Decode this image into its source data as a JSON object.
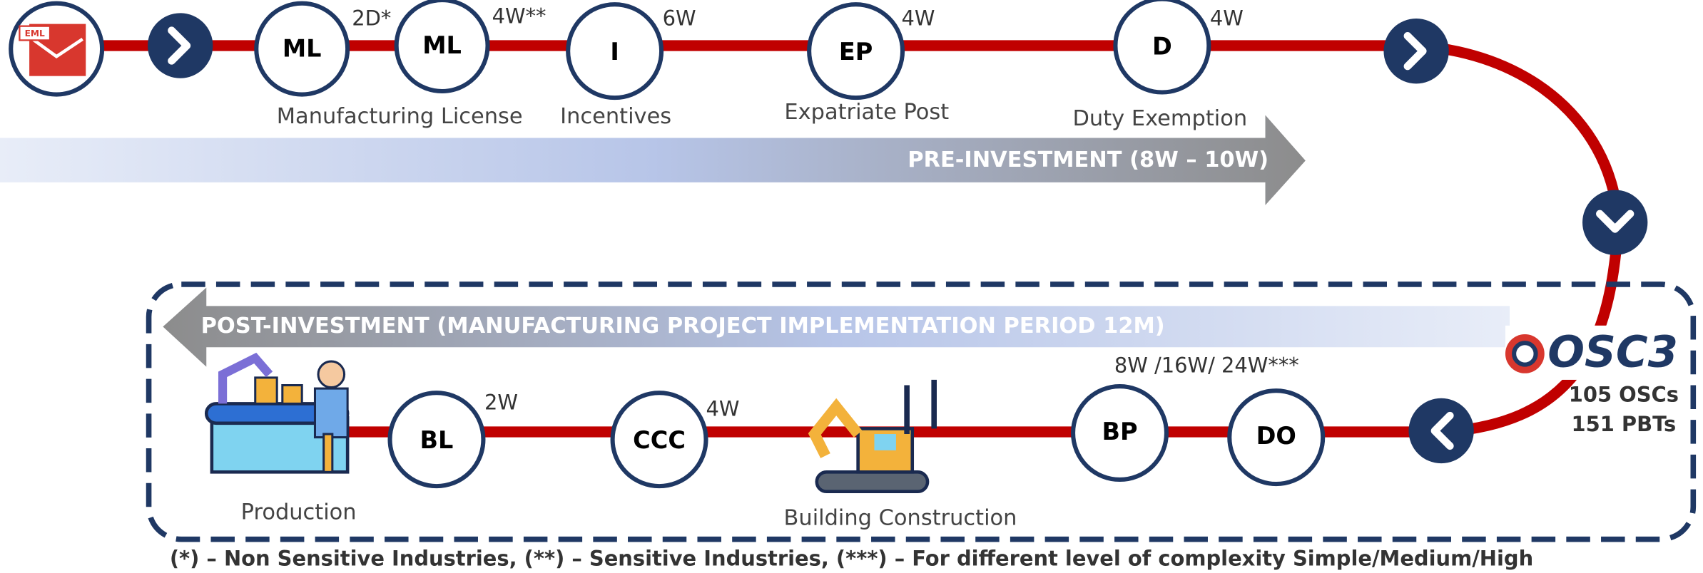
{
  "icon_label": "EML",
  "pre_investment": {
    "title": "PRE-INVESTMENT (8W – 10W)",
    "steps": [
      {
        "code": "ML",
        "duration": "2D*"
      },
      {
        "code": "ML",
        "duration": "4W**"
      },
      {
        "code": "I",
        "duration": "6W"
      },
      {
        "code": "EP",
        "duration": "4W"
      },
      {
        "code": "D",
        "duration": "4W"
      }
    ],
    "labels": [
      "Manufacturing License",
      "Incentives",
      "Expatriate Post",
      "Duty Exemption"
    ]
  },
  "post_investment": {
    "title": "POST-INVESTMENT (MANUFACTURING PROJECT IMPLEMENTATION PERIOD 12M)",
    "steps": [
      {
        "code": "BL",
        "duration": "2W"
      },
      {
        "code": "CCC",
        "duration": "4W"
      },
      {
        "code": "BP",
        "duration": "8W /16W/ 24W***"
      },
      {
        "code": "DO"
      }
    ],
    "labels": [
      "Production",
      "Building Construction"
    ]
  },
  "logo": {
    "name": "OSC3",
    "lines": [
      "105 OSCs",
      "151 PBTs"
    ]
  },
  "footnote": "(*) – Non Sensitive Industries, (**) – Sensitive Industries, (***) – For different level of complexity Simple/Medium/High"
}
